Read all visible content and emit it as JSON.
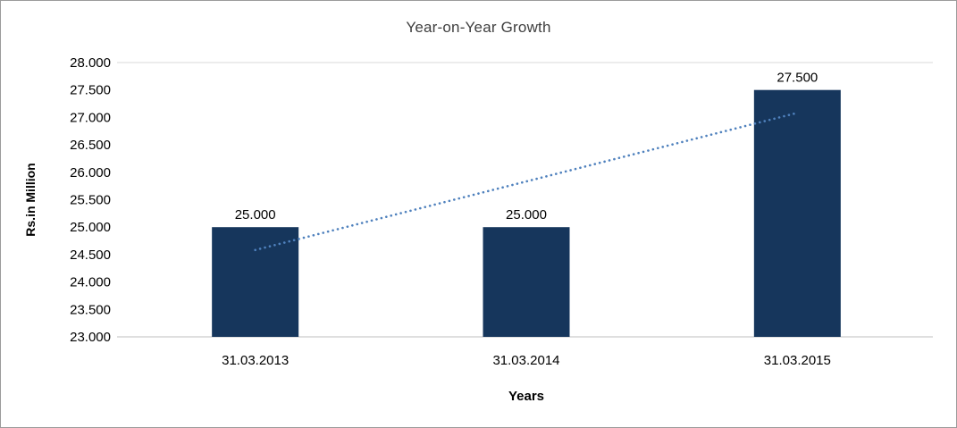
{
  "frame": {
    "background": "#ffffff",
    "border_color": "#9b9b9b"
  },
  "chart_data": {
    "type": "bar",
    "title": "Year-on-Year Growth",
    "xlabel": "Years",
    "ylabel": "Rs.in Million",
    "categories": [
      "31.03.2013",
      "31.03.2014",
      "31.03.2015"
    ],
    "values": [
      25000,
      25000,
      27500
    ],
    "value_labels": [
      "25.000",
      "25.000",
      "27.500"
    ],
    "ylim": [
      23000,
      28000
    ],
    "y_ticks": [
      23000,
      23500,
      24000,
      24500,
      25000,
      25500,
      26000,
      26500,
      27000,
      27500,
      28000
    ],
    "y_tick_labels": [
      "23.000",
      "23.500",
      "24.000",
      "24.500",
      "25.000",
      "25.500",
      "26.000",
      "26.500",
      "27.000",
      "27.500",
      "28.000"
    ],
    "bar_color": "#16365c",
    "gridline": "top-edge-only",
    "legend": "none",
    "trendline": {
      "type": "linear",
      "style": "dotted",
      "color": "#4f81bd",
      "y_start": 24583,
      "y_end": 27083
    },
    "colors": {
      "axis_line": "#bfbfbf",
      "gridline": "#d9d9d9",
      "tick_text": "#000000",
      "title_text": "#3f3f3f"
    }
  }
}
